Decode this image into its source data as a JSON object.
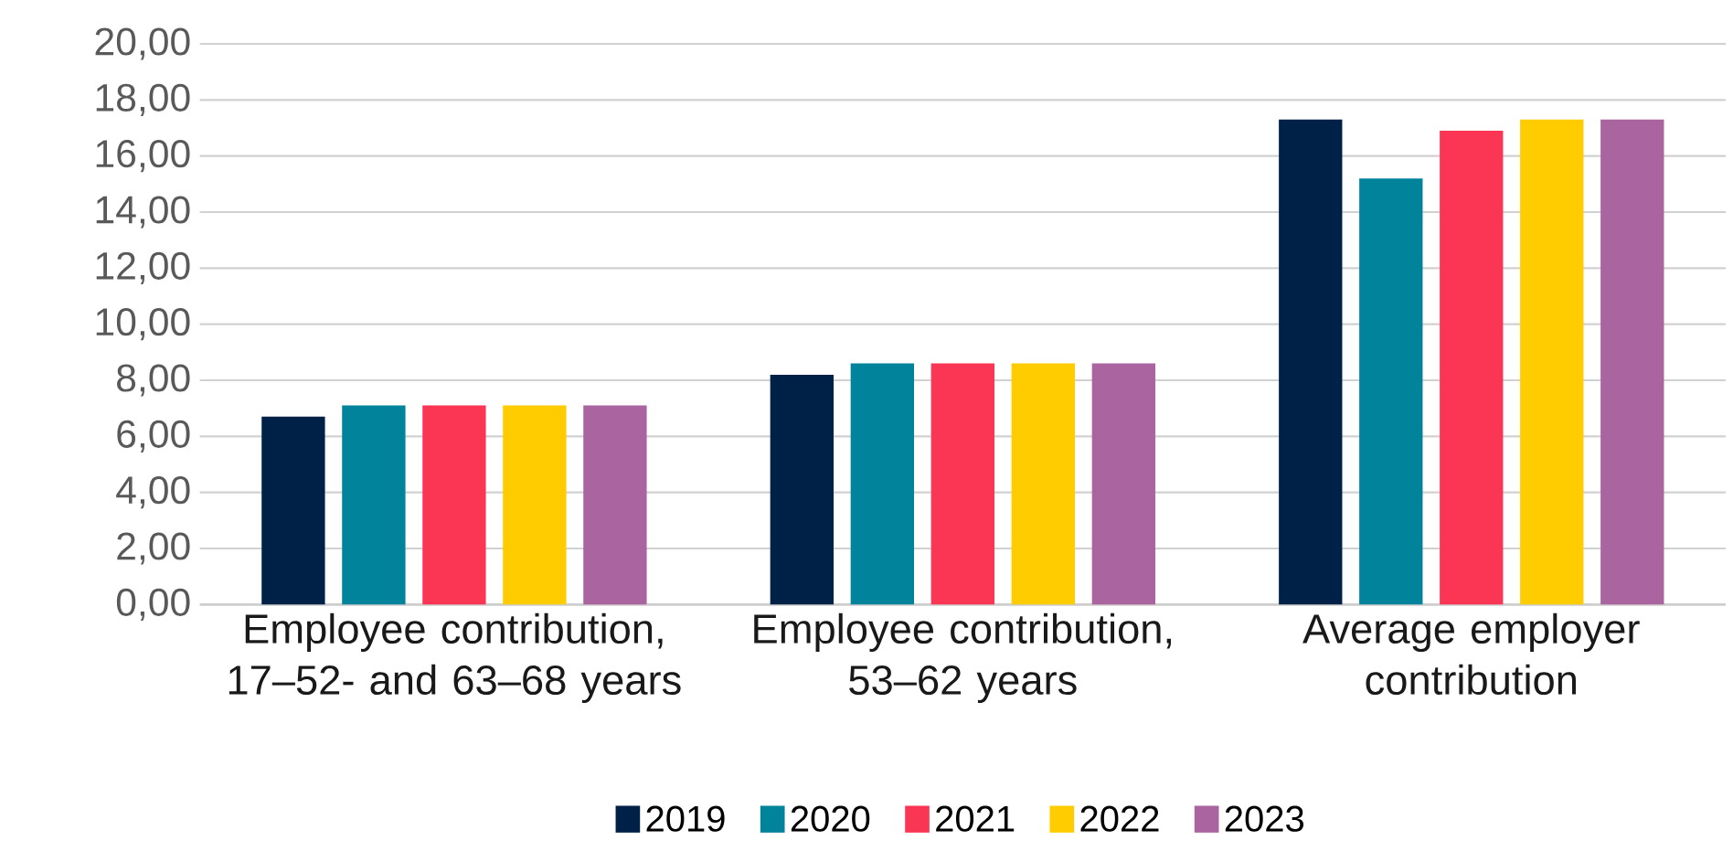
{
  "chart_data": {
    "type": "bar",
    "categories": [
      "Employee contribution, 17–52- and 63–68 years",
      "Employee contribution, 53–62 years",
      "Average employer contribution"
    ],
    "series": [
      {
        "name": "2019",
        "color": "#002147",
        "values": [
          6.7,
          8.2,
          17.3
        ]
      },
      {
        "name": "2020",
        "color": "#00839b",
        "values": [
          7.1,
          8.6,
          15.2
        ]
      },
      {
        "name": "2021",
        "color": "#fa3654",
        "values": [
          7.1,
          8.6,
          16.9
        ]
      },
      {
        "name": "2022",
        "color": "#ffcc00",
        "values": [
          7.1,
          8.6,
          17.3
        ]
      },
      {
        "name": "2023",
        "color": "#aa64a0",
        "values": [
          7.1,
          8.6,
          17.3
        ]
      }
    ],
    "ylim": [
      0,
      20
    ],
    "yticks": [
      {
        "value": 0,
        "label": "0,00"
      },
      {
        "value": 2,
        "label": "2,00"
      },
      {
        "value": 4,
        "label": "4,00"
      },
      {
        "value": 6,
        "label": "6,00"
      },
      {
        "value": 8,
        "label": "8,00"
      },
      {
        "value": 10,
        "label": "10,00"
      },
      {
        "value": 12,
        "label": "12,00"
      },
      {
        "value": 14,
        "label": "14,00"
      },
      {
        "value": 16,
        "label": "16,00"
      },
      {
        "value": 18,
        "label": "18,00"
      },
      {
        "value": 20,
        "label": "20,00"
      }
    ],
    "grid": "y",
    "legend": "bottom"
  }
}
